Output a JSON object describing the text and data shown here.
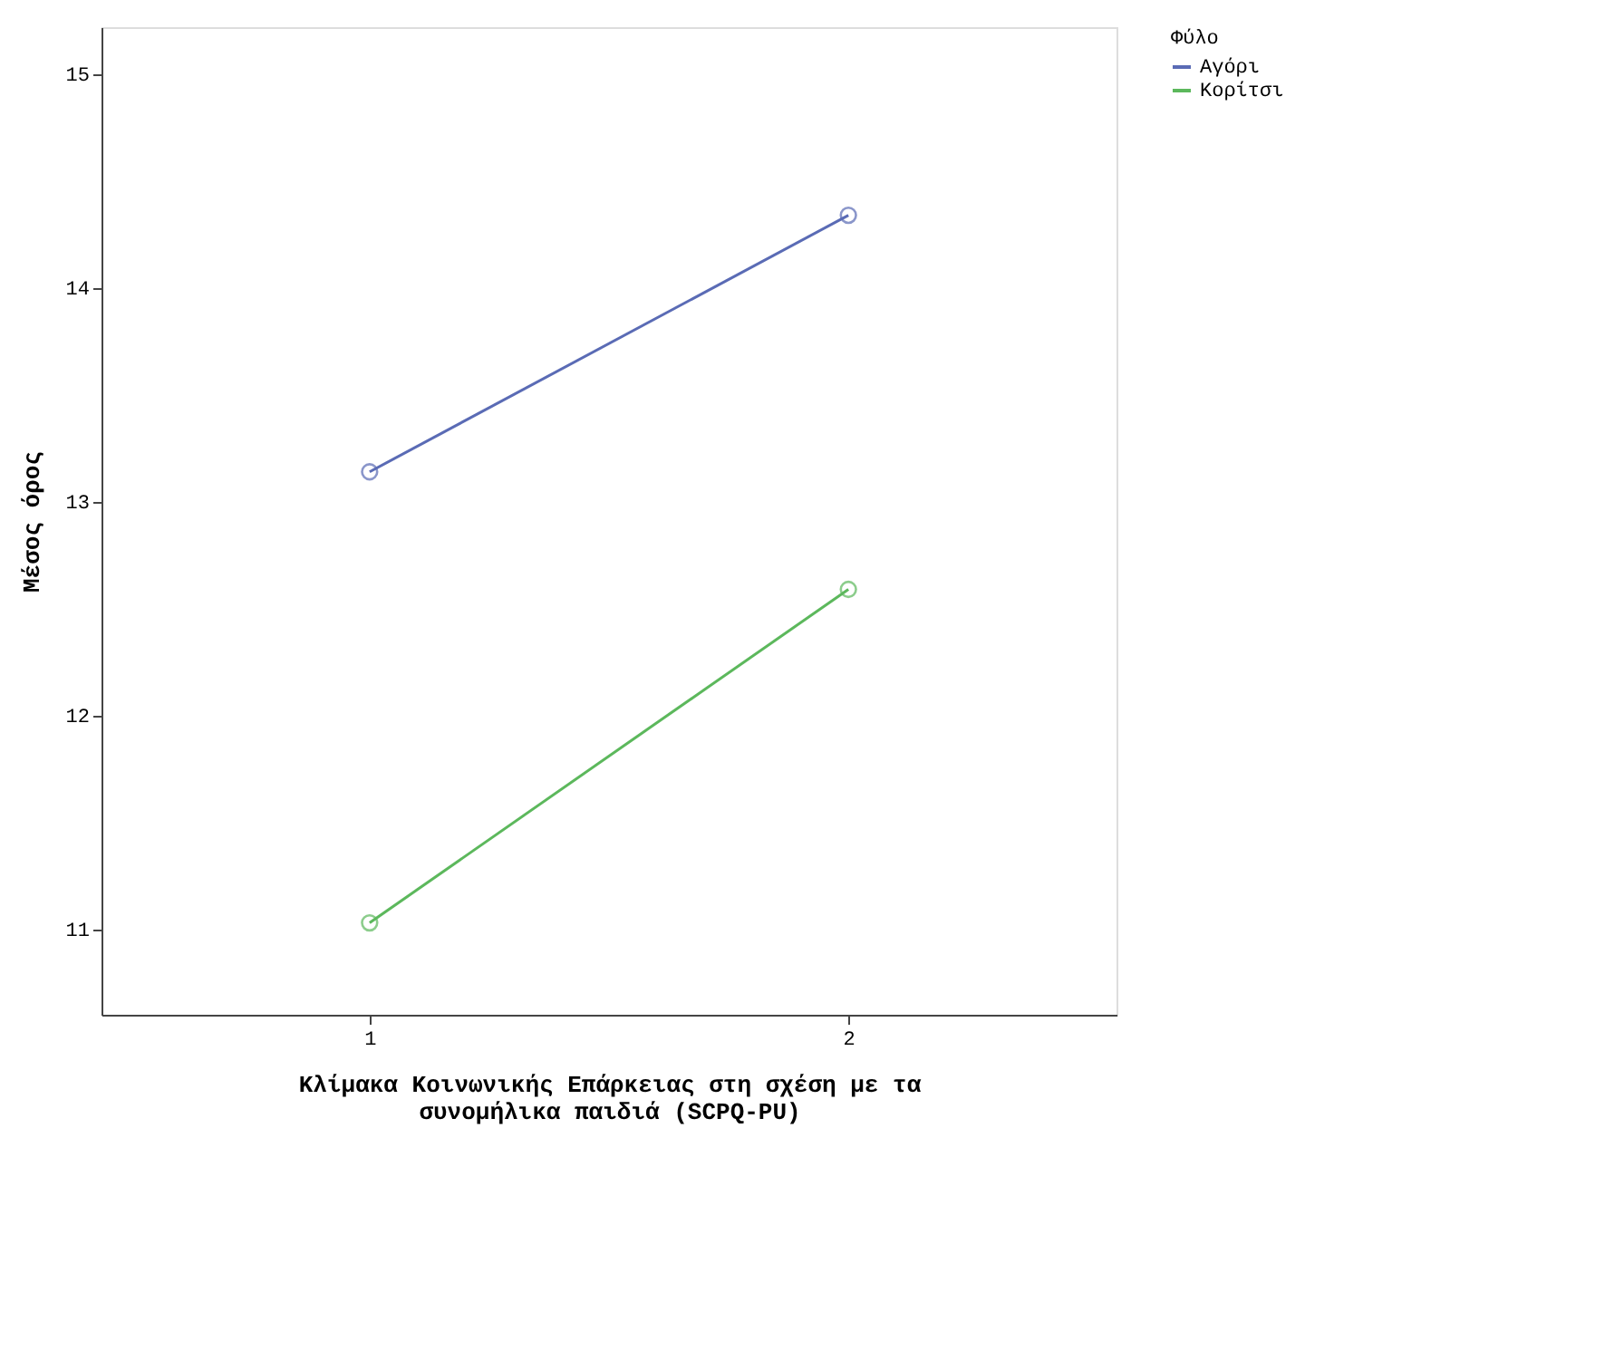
{
  "chart_data": {
    "type": "line",
    "xlabel": "Κλίμακα Κοινωνικής Επάρκειας στη σχέση με τα\nσυνομήλικα παιδιά (SCPQ-PU)",
    "ylabel": "Μέσος όρος",
    "legend_title": "Φύλο",
    "categories": [
      "1",
      "2"
    ],
    "series": [
      {
        "name": "Αγόρι",
        "color": "#5a6bb5",
        "values": [
          13.14,
          14.34
        ]
      },
      {
        "name": "Κορίτσι",
        "color": "#5cb85c",
        "values": [
          11.03,
          12.59
        ]
      }
    ],
    "ylim": [
      10.6,
      15.22
    ],
    "yticks": [
      11,
      12,
      13,
      14,
      15
    ],
    "grid": false,
    "legend": "right",
    "marker": "circle",
    "line_style": "solid"
  }
}
